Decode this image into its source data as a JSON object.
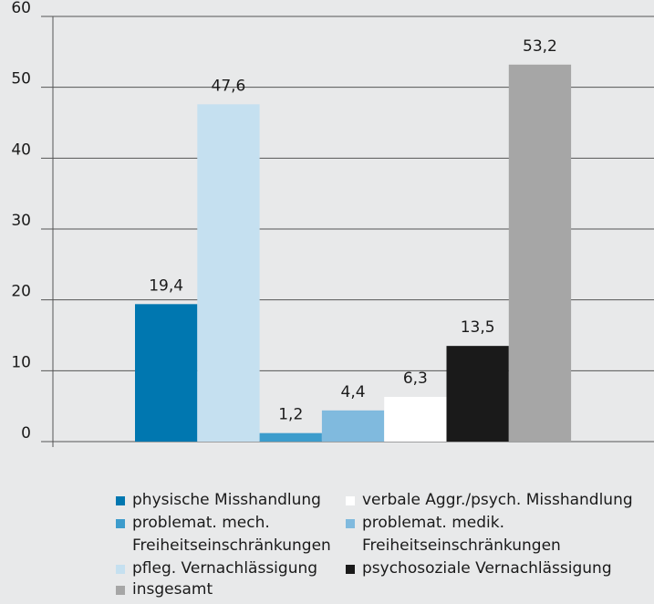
{
  "chart_data": {
    "type": "bar",
    "series": [
      {
        "name": "physische Misshandlung",
        "color": "#0077b0",
        "values": [
          19.4
        ],
        "value_labels": [
          "19,4"
        ]
      },
      {
        "name": "pfleg. Vernachlässigung",
        "color": "#c5e0f0",
        "values": [
          47.6
        ],
        "value_labels": [
          "47,6"
        ]
      },
      {
        "name": "problemat. mech. Freiheitseinschränkungen",
        "color": "#3d9ccc",
        "values": [
          1.2
        ],
        "value_labels": [
          "1,2"
        ]
      },
      {
        "name": "problemat. medik. Freiheitseinschränkungen",
        "color": "#80bade",
        "values": [
          4.4
        ],
        "value_labels": [
          "4,4"
        ]
      },
      {
        "name": "verbale Aggr./psych. Misshandlung",
        "color": "#ffffff",
        "values": [
          6.3
        ],
        "value_labels": [
          "6,3"
        ]
      },
      {
        "name": "psychosoziale Vernachlässigung",
        "color": "#1a1a1a",
        "values": [
          13.5
        ],
        "value_labels": [
          "13,5"
        ]
      },
      {
        "name": "insgesamt",
        "color": "#a6a6a6",
        "values": [
          53.2
        ],
        "value_labels": [
          "53,2"
        ]
      }
    ],
    "ylim": [
      0,
      60
    ],
    "yticks": [
      0,
      10,
      20,
      30,
      40,
      50,
      60
    ],
    "grid": true
  }
}
